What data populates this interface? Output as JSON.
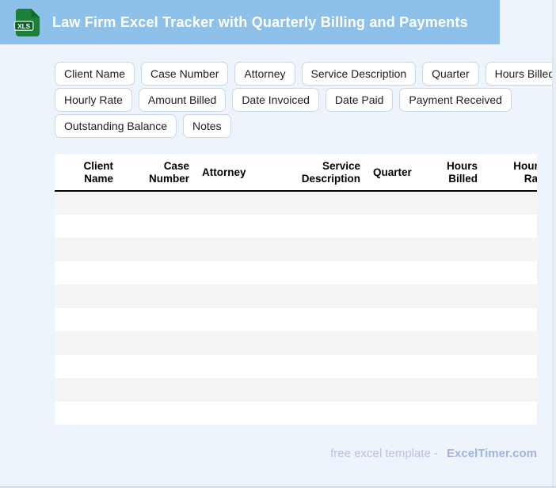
{
  "header": {
    "title": "Law Firm Excel Tracker with Quarterly Billing and Payments",
    "file_badge": "XLS"
  },
  "chips": {
    "rows": [
      [
        "Client Name",
        "Case Number",
        "Attorney",
        "Service Description",
        "Quarter",
        "Hours Billed"
      ],
      [
        "Hourly Rate",
        "Amount Billed",
        "Date Invoiced",
        "Date Paid",
        "Payment Received"
      ],
      [
        "Outstanding Balance",
        "Notes"
      ]
    ]
  },
  "table": {
    "columns": [
      "Client Name",
      "Case Number",
      "Attorney",
      "Service Description",
      "Quarter",
      "Hours Billed",
      "Hourly Rate"
    ],
    "empty_row_count": 10
  },
  "footer": {
    "prefix": "free excel template -",
    "brand": "ExcelTimer.com"
  },
  "colors": {
    "header_bar": "#8dc1e9",
    "page_bg": "#eef4fc",
    "icon_green": "#1c8038",
    "icon_band_green": "#0e5f28",
    "row_stripe": "#f5f5f5",
    "chip_border": "#cbd6e9",
    "footer_text": "#b6c2e5",
    "footer_brand": "#a2b2e0",
    "table_header_border": "#000000"
  }
}
